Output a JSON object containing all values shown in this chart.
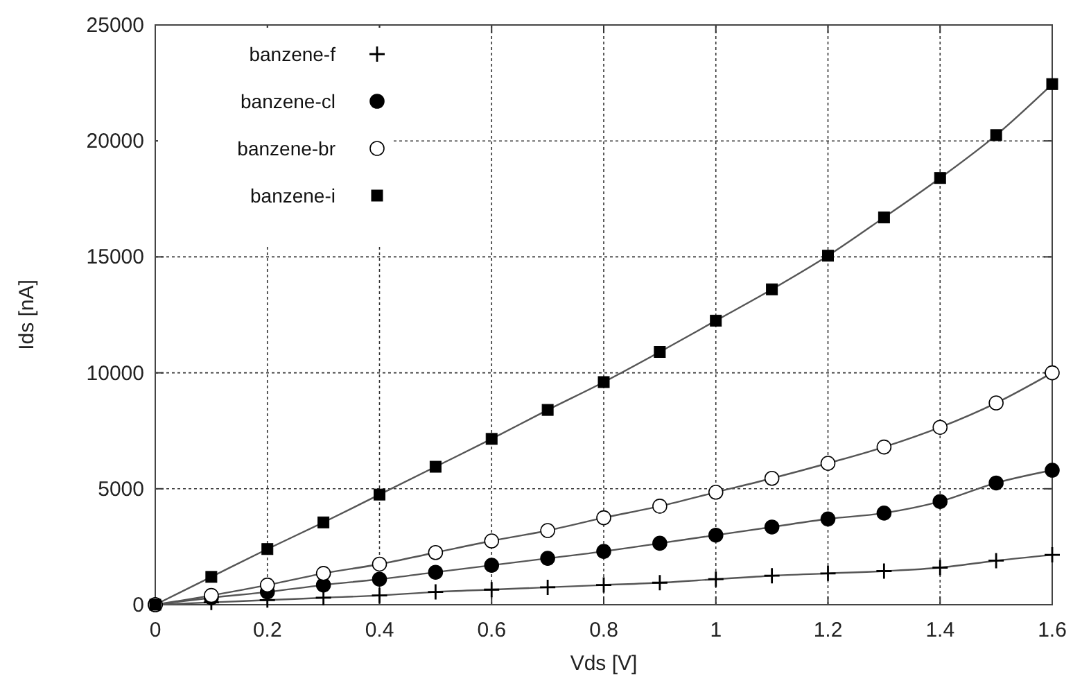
{
  "chart_data": {
    "type": "line",
    "xlabel": "Vds [V]",
    "ylabel": "Ids [nA]",
    "x": [
      0,
      0.1,
      0.2,
      0.3,
      0.4,
      0.5,
      0.6,
      0.7,
      0.8,
      0.9,
      1.0,
      1.1,
      1.2,
      1.3,
      1.4,
      1.5,
      1.6
    ],
    "series": [
      {
        "name": "banzene-f",
        "color": "#000000",
        "marker": "cross",
        "values": [
          0,
          100,
          200,
          300,
          400,
          550,
          650,
          750,
          850,
          950,
          1100,
          1250,
          1350,
          1450,
          1600,
          1900,
          2150
        ]
      },
      {
        "name": "banzene-cl",
        "color": "#000000",
        "marker": "circle",
        "values": [
          0,
          300,
          550,
          850,
          1100,
          1400,
          1700,
          2000,
          2300,
          2650,
          3000,
          3350,
          3700,
          3950,
          4450,
          5250,
          5800
        ]
      },
      {
        "name": "banzene-br",
        "color": "#ffffff",
        "marker": "circle",
        "values": [
          0,
          400,
          850,
          1350,
          1750,
          2250,
          2750,
          3200,
          3750,
          4250,
          4850,
          5450,
          6100,
          6800,
          7650,
          8700,
          10000
        ]
      },
      {
        "name": "banzene-i",
        "color": "#000000",
        "marker": "square",
        "values": [
          0,
          1200,
          2400,
          3550,
          4750,
          5950,
          7150,
          8400,
          9600,
          10900,
          12250,
          13600,
          15050,
          16700,
          18400,
          20250,
          22450
        ]
      }
    ],
    "xlim": [
      0,
      1.6
    ],
    "xticks": [
      0,
      0.2,
      0.4,
      0.6,
      0.8,
      1,
      1.2,
      1.4,
      1.6
    ],
    "ylim": [
      0,
      25000
    ],
    "yticks": [
      0,
      5000,
      10000,
      15000,
      20000,
      25000
    ],
    "grid": true,
    "legend": "top left",
    "line_style": "solid"
  }
}
